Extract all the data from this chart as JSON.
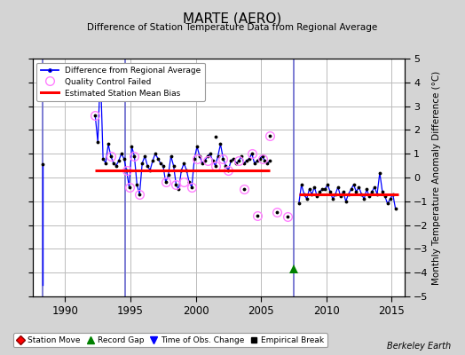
{
  "title": "MARTE (AERO)",
  "subtitle": "Difference of Station Temperature Data from Regional Average",
  "ylabel": "Monthly Temperature Anomaly Difference (°C)",
  "xlim": [
    1987.5,
    2016
  ],
  "ylim": [
    -5,
    5
  ],
  "xticks": [
    1990,
    1995,
    2000,
    2005,
    2010,
    2015
  ],
  "yticks": [
    -5,
    -4,
    -3,
    -2,
    -1,
    0,
    1,
    2,
    3,
    4,
    5
  ],
  "bg_color": "#d4d4d4",
  "plot_bg": "#ffffff",
  "grid_color": "#bbbbbb",
  "watermark": "Berkeley Earth",
  "segment1_bias": 0.3,
  "segment1_start": 1992.3,
  "segment1_end": 2005.7,
  "segment2_bias": -0.72,
  "segment2_start": 2007.9,
  "segment2_end": 2015.5,
  "vline_color": "#6666cc",
  "vlines": [
    1988.3,
    1994.6,
    2007.5
  ],
  "green_tri_x": 2007.5,
  "green_tri_y": -3.85,
  "seg1_x": [
    1992.3,
    1992.5,
    1992.7,
    1992.9,
    1993.1,
    1993.3,
    1993.5,
    1993.7,
    1993.9,
    1994.1,
    1994.3,
    1994.5,
    1994.7,
    1994.9,
    1995.1,
    1995.3,
    1995.5,
    1995.7,
    1995.9,
    1996.1,
    1996.3,
    1996.5,
    1996.7,
    1996.9,
    1997.1,
    1997.3,
    1997.5,
    1997.7,
    1997.9,
    1998.1,
    1998.3,
    1998.5,
    1998.7,
    1998.9,
    1999.1,
    1999.3,
    1999.5,
    1999.7,
    1999.9,
    2000.1,
    2000.3,
    2000.5,
    2000.7,
    2000.9,
    2001.1,
    2001.3,
    2001.5,
    2001.7,
    2001.9,
    2002.1,
    2002.3,
    2002.5,
    2002.7,
    2002.9,
    2003.1,
    2003.3,
    2003.5,
    2003.7,
    2003.9,
    2004.1,
    2004.3,
    2004.5,
    2004.7,
    2004.9,
    2005.1,
    2005.3,
    2005.5,
    2005.7
  ],
  "seg1_y": [
    2.6,
    1.5,
    4.5,
    0.8,
    0.6,
    1.4,
    0.9,
    0.6,
    0.5,
    0.7,
    1.0,
    0.8,
    0.3,
    -0.4,
    1.3,
    0.9,
    -0.3,
    -0.7,
    0.6,
    0.9,
    0.5,
    0.3,
    0.7,
    1.0,
    0.8,
    0.6,
    0.5,
    -0.2,
    0.1,
    0.9,
    0.5,
    -0.3,
    -0.5,
    0.3,
    0.6,
    0.3,
    -0.2,
    -0.4,
    0.8,
    1.3,
    0.9,
    0.6,
    0.7,
    0.9,
    1.0,
    0.7,
    0.5,
    0.9,
    1.4,
    0.8,
    0.5,
    0.3,
    0.7,
    0.8,
    0.6,
    0.7,
    0.9,
    0.6,
    0.7,
    0.8,
    1.0,
    0.6,
    0.7,
    0.8,
    0.9,
    0.7,
    0.6,
    0.7
  ],
  "seg2_x": [
    2007.9,
    2008.1,
    2008.3,
    2008.5,
    2008.7,
    2008.9,
    2009.1,
    2009.3,
    2009.5,
    2009.7,
    2009.9,
    2010.1,
    2010.3,
    2010.5,
    2010.7,
    2010.9,
    2011.1,
    2011.3,
    2011.5,
    2011.7,
    2011.9,
    2012.1,
    2012.3,
    2012.5,
    2012.7,
    2012.9,
    2013.1,
    2013.3,
    2013.5,
    2013.7,
    2013.9,
    2014.1,
    2014.3,
    2014.5,
    2014.7,
    2014.9,
    2015.1,
    2015.3
  ],
  "seg2_y": [
    -1.1,
    -0.3,
    -0.7,
    -0.9,
    -0.5,
    -0.7,
    -0.4,
    -0.8,
    -0.6,
    -0.5,
    -0.5,
    -0.3,
    -0.6,
    -0.9,
    -0.7,
    -0.4,
    -0.8,
    -0.6,
    -1.0,
    -0.7,
    -0.5,
    -0.3,
    -0.6,
    -0.4,
    -0.7,
    -0.9,
    -0.5,
    -0.8,
    -0.6,
    -0.4,
    -0.7,
    0.2,
    -0.6,
    -0.8,
    -1.1,
    -0.9,
    -0.7,
    -1.3
  ],
  "lone_point_x": 1988.3,
  "lone_point_y": 0.55,
  "lone_vline_bottom": -4.5,
  "isolated_x": [
    2001.5,
    2003.7,
    2004.7,
    2005.7,
    2006.2,
    2007.0
  ],
  "isolated_y": [
    1.7,
    -0.5,
    -1.6,
    1.75,
    -1.45,
    -1.65
  ],
  "qc_x": [
    1992.3,
    1992.7,
    1993.5,
    1994.7,
    1994.9,
    1995.3,
    1995.7,
    1997.7,
    1998.5,
    1999.1,
    1999.7,
    2000.1,
    2000.9,
    2001.5,
    2002.1,
    2002.5,
    2003.3,
    2004.3,
    2005.1,
    2003.7,
    2004.7,
    2005.7,
    2006.2,
    2007.0
  ],
  "qc_y": [
    2.6,
    4.5,
    0.9,
    0.3,
    -0.4,
    0.9,
    -0.7,
    -0.2,
    -0.3,
    -0.2,
    -0.4,
    0.8,
    0.7,
    0.5,
    0.8,
    0.3,
    0.7,
    1.0,
    0.8,
    -0.5,
    -1.6,
    1.75,
    -1.45,
    -1.65
  ]
}
